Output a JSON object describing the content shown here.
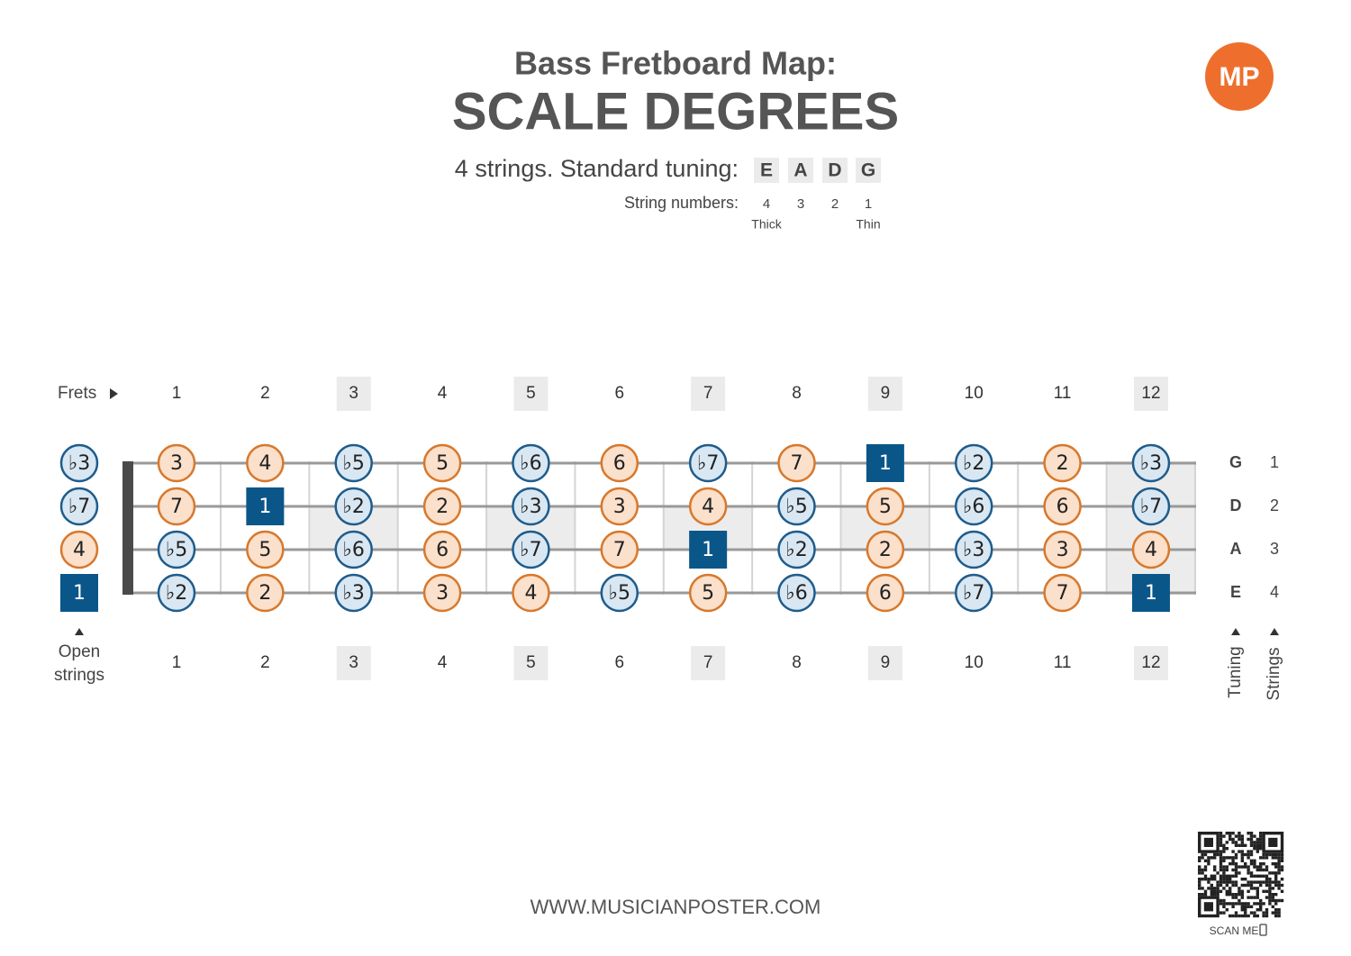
{
  "header": {
    "subtitle": "Bass Fretboard Map:",
    "title": "SCALE DEGREES",
    "tuning_label": "4 strings. Standard tuning:",
    "tuning": [
      "E",
      "A",
      "D",
      "G"
    ],
    "string_numbers_label": "String numbers:",
    "string_numbers": [
      "4",
      "3",
      "2",
      "1"
    ],
    "thick": "Thick",
    "thin": "Thin"
  },
  "logo": "MP",
  "frets_label": "Frets",
  "frets": [
    "1",
    "2",
    "3",
    "4",
    "5",
    "6",
    "7",
    "8",
    "9",
    "10",
    "11",
    "12"
  ],
  "strings": [
    {
      "tuning": "G",
      "number": "1",
      "open": "♭3",
      "notes": [
        "3",
        "4",
        "♭5",
        "5",
        "♭6",
        "6",
        "♭7",
        "7",
        "1",
        "♭2",
        "2",
        "♭3"
      ]
    },
    {
      "tuning": "D",
      "number": "2",
      "open": "♭7",
      "notes": [
        "7",
        "1",
        "♭2",
        "2",
        "♭3",
        "3",
        "4",
        "♭5",
        "5",
        "♭6",
        "6",
        "♭7"
      ]
    },
    {
      "tuning": "A",
      "number": "3",
      "open": "4",
      "notes": [
        "♭5",
        "5",
        "♭6",
        "6",
        "♭7",
        "7",
        "1",
        "♭2",
        "2",
        "♭3",
        "3",
        "4"
      ]
    },
    {
      "tuning": "E",
      "number": "4",
      "open": "1",
      "notes": [
        "♭2",
        "2",
        "♭3",
        "3",
        "4",
        "♭5",
        "5",
        "♭6",
        "6",
        "♭7",
        "7",
        "1"
      ]
    }
  ],
  "open_label": [
    "Open",
    "strings"
  ],
  "tuning_axis_label": "Tuning",
  "strings_axis_label": "Strings",
  "website": "WWW.MUSICIANPOSTER.COM",
  "scan_me": "SCAN ME"
}
